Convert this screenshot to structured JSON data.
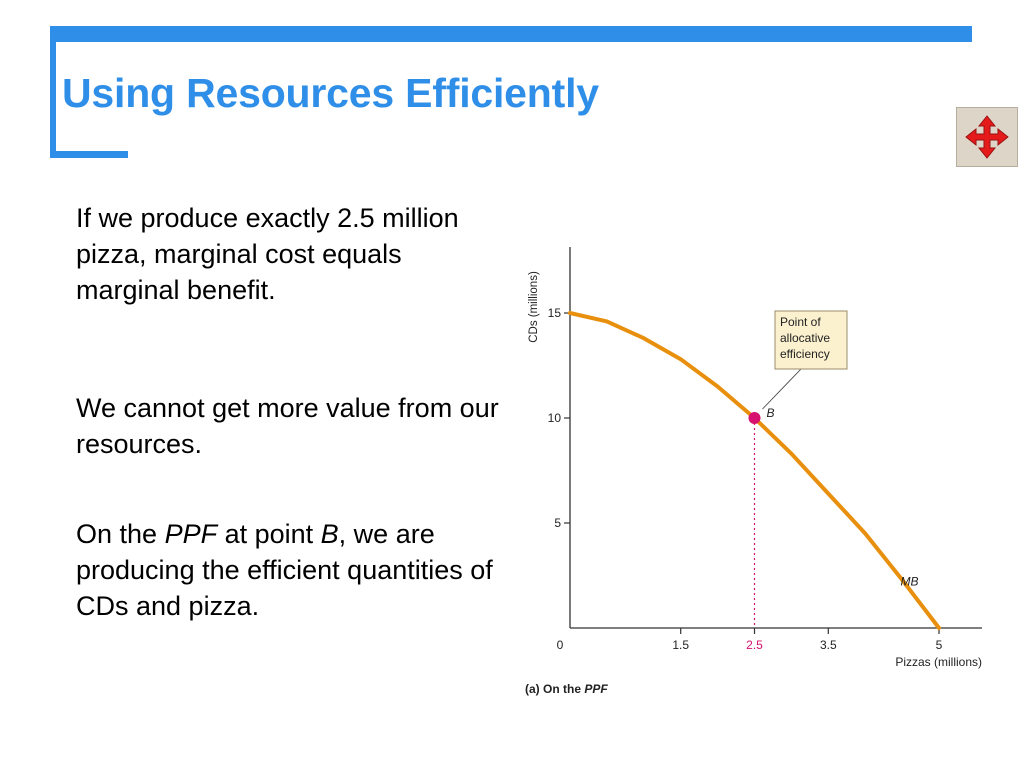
{
  "slide": {
    "title": "Using Resources Efficiently",
    "accent_color": "#2f8fe8",
    "nav_icon": "four-way-arrows-icon"
  },
  "text": {
    "p1": "If we produce exactly 2.5 million pizza, marginal cost equals marginal benefit.",
    "p2": "We cannot get more value from our resources.",
    "p3": {
      "a": "On the ",
      "ppf": "PPF",
      "b": " at point ",
      "point": "B",
      "c": ", we are producing the efficient quantities of CDs and pizza."
    }
  },
  "chart_data": {
    "type": "line",
    "caption_prefix": "(a) On the ",
    "caption_emph": "PPF",
    "xlabel": "Pizzas (millions)",
    "ylabel": "CDs (millions)",
    "xlim": [
      0,
      5.3
    ],
    "ylim": [
      0,
      18
    ],
    "xticks": [
      {
        "value": 0,
        "label": "0"
      },
      {
        "value": 1.5,
        "label": "1.5"
      },
      {
        "value": 2.5,
        "label": "2.5"
      },
      {
        "value": 3.5,
        "label": "3.5"
      },
      {
        "value": 5,
        "label": "5"
      }
    ],
    "yticks": [
      {
        "value": 5,
        "label": "5"
      },
      {
        "value": 10,
        "label": "10"
      },
      {
        "value": 15,
        "label": "15"
      }
    ],
    "series": [
      {
        "name": "MB",
        "color": "#e8900e",
        "x": [
          0,
          0.5,
          1.0,
          1.5,
          2.0,
          2.5,
          3.0,
          3.5,
          4.0,
          4.5,
          5.0
        ],
        "y": [
          15,
          14.6,
          13.8,
          12.8,
          11.5,
          10,
          8.3,
          6.4,
          4.5,
          2.3,
          0
        ]
      }
    ],
    "point": {
      "label": "B",
      "x": 2.5,
      "y": 10,
      "color": "#d6116e"
    },
    "annotation": "Point of allocative efficiency",
    "annotation_lines": [
      "Point of",
      "allocative",
      "efficiency"
    ]
  }
}
